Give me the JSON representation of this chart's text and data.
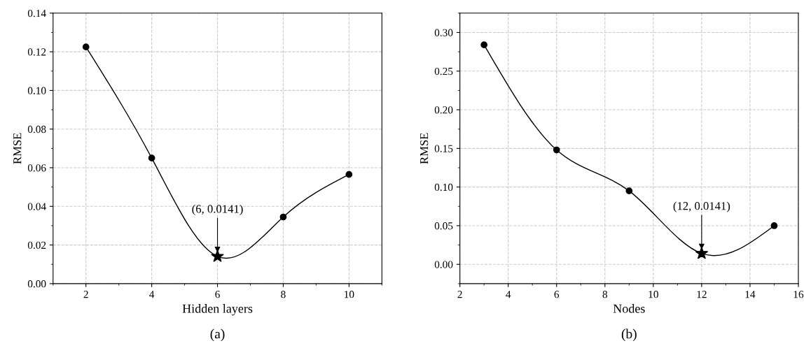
{
  "chart_data": [
    {
      "type": "line",
      "xlabel": "Hidden layers",
      "ylabel": "RMSE",
      "xlim": [
        1,
        11
      ],
      "xticks": [
        2,
        4,
        6,
        8,
        10
      ],
      "ylim": [
        0,
        0.14
      ],
      "yticks": [
        {
          "value": 0,
          "label": "0.00"
        },
        {
          "value": 0.02,
          "label": "0.02"
        },
        {
          "value": 0.04,
          "label": "0.04"
        },
        {
          "value": 0.06,
          "label": "0.06"
        },
        {
          "value": 0.08,
          "label": "0.08"
        },
        {
          "value": 0.1,
          "label": "0.10"
        },
        {
          "value": 0.12,
          "label": "0.12"
        },
        {
          "value": 0.14,
          "label": "0.14"
        }
      ],
      "grid": true,
      "series": [
        {
          "type": "line",
          "color": "#000000",
          "marker": "none",
          "x": [
            2,
            4,
            6,
            8,
            10
          ],
          "values": [
            0.1225,
            0.065,
            0.0141,
            0.0345,
            0.0565
          ]
        },
        {
          "type": "scatter",
          "color": "#000000",
          "marker": "circle",
          "x": [
            2,
            4,
            8,
            10
          ],
          "values": [
            0.1225,
            0.065,
            0.0345,
            0.0565
          ]
        },
        {
          "type": "scatter",
          "color": "#000000",
          "marker": "star",
          "x": [
            6
          ],
          "values": [
            0.0141
          ]
        }
      ],
      "annotations": [
        {
          "text": "(6, 0.0141)",
          "x": 6,
          "y": 0.0141
        },
        "(a)"
      ]
    },
    {
      "type": "line",
      "xlabel": "Nodes",
      "ylabel": "RMSE",
      "xlim": [
        2,
        16
      ],
      "xticks": [
        2,
        4,
        6,
        8,
        10,
        12,
        14,
        16
      ],
      "ylim": [
        -0.025,
        0.325
      ],
      "yticks": [
        {
          "value": 0,
          "label": "0.00"
        },
        {
          "value": 0.05,
          "label": "0.05"
        },
        {
          "value": 0.1,
          "label": "0.10"
        },
        {
          "value": 0.15,
          "label": "0.15"
        },
        {
          "value": 0.2,
          "label": "0.20"
        },
        {
          "value": 0.25,
          "label": "0.25"
        },
        {
          "value": 0.3,
          "label": "0.30"
        }
      ],
      "grid": true,
      "series": [
        {
          "type": "line",
          "color": "#000000",
          "marker": "none",
          "x": [
            3,
            6,
            9,
            12,
            15
          ],
          "values": [
            0.284,
            0.148,
            0.095,
            0.0141,
            0.05
          ]
        },
        {
          "type": "scatter",
          "color": "#000000",
          "marker": "circle",
          "x": [
            3,
            6,
            9,
            15
          ],
          "values": [
            0.284,
            0.148,
            0.095,
            0.05
          ]
        },
        {
          "type": "scatter",
          "color": "#000000",
          "marker": "star",
          "x": [
            12
          ],
          "values": [
            0.0141
          ]
        }
      ],
      "annotations": [
        {
          "text": "(12, 0.0141)",
          "x": 12,
          "y": 0.0141
        },
        "(b)"
      ]
    }
  ]
}
